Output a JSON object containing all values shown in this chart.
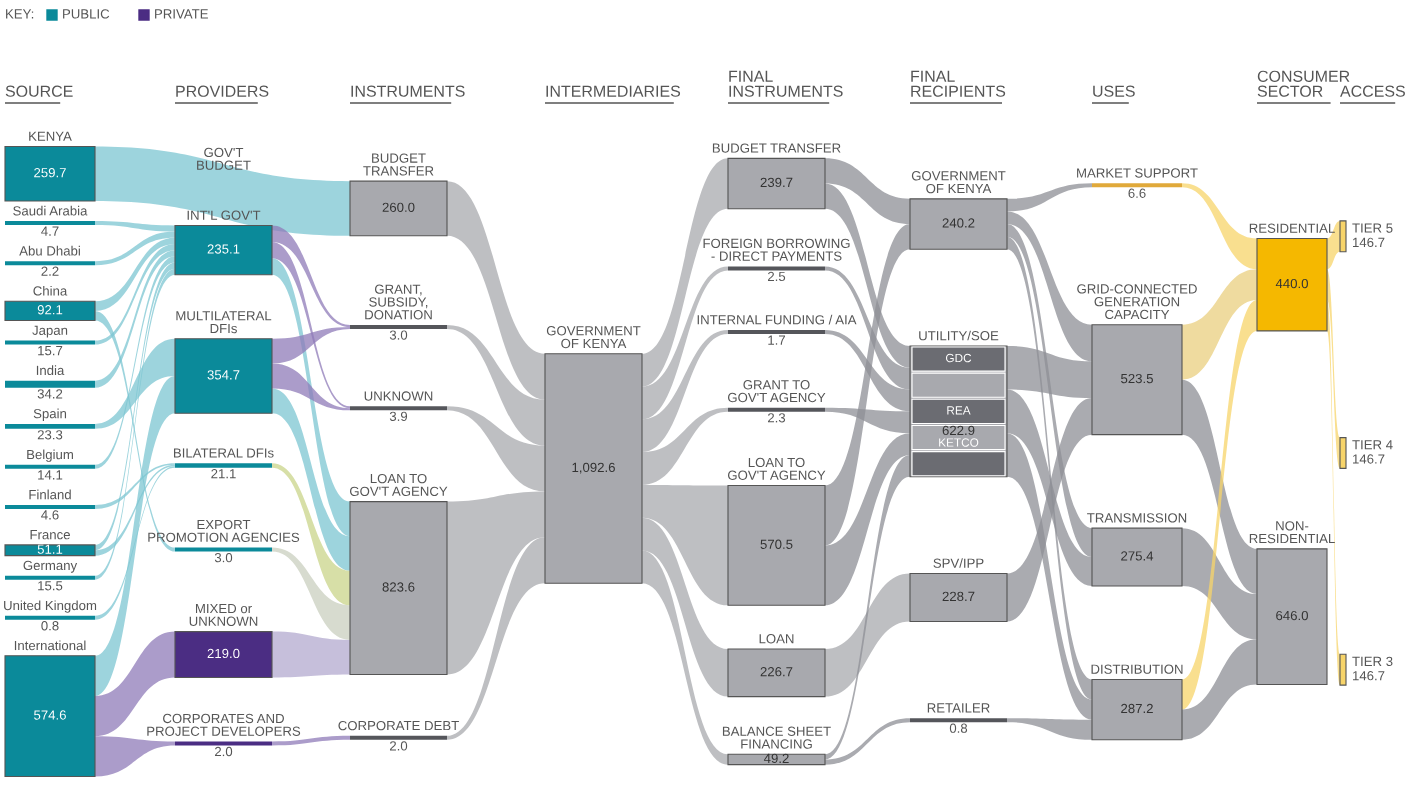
{
  "chart_data": [
    {
      "type": "other",
      "title": "SOURCE",
      "categories": [
        "KENYA",
        "Saudi Arabia",
        "Abu Dhabi",
        "China",
        "Japan",
        "India",
        "Spain",
        "Belgium",
        "Finland",
        "France",
        "Germany",
        "United Kingdom",
        "International"
      ],
      "values": [
        259.7,
        4.7,
        2.2,
        92.1,
        15.7,
        34.2,
        23.3,
        14.1,
        4.6,
        51.1,
        15.5,
        0.8,
        574.6
      ],
      "value_labels": [
        "259.7",
        "4.7",
        "2.2",
        "92.1",
        "15.7",
        "34.2",
        "23.3",
        "14.1",
        "4.6",
        "51.1",
        "15.5",
        "0.8",
        "574.6"
      ],
      "colors": [
        "#0b8a9a",
        "#0b8a9a",
        "#0b8a9a",
        "#0b8a9a",
        "#0b8a9a",
        "#0b8a9a",
        "#0b8a9a",
        "#0b8a9a",
        "#0b8a9a",
        "#0b8a9a",
        "#0b8a9a",
        "#0b8a9a",
        "#0b8a9a"
      ]
    },
    {
      "type": "other",
      "title": "PROVIDERS",
      "legend_title": "KEY:",
      "legend": "top left",
      "categories": [
        "GOV'T\nBUDGET",
        "INT'L GOV'T",
        "MULTILATERAL\nDFIs",
        "BILATERAL DFIs",
        "EXPORT\nPROMOTION AGENCIES",
        "MIXED or\nUNKNOWN",
        "CORPORATES AND\nPROJECT DEVELOPERS"
      ],
      "series": [
        {
          "name": "PUBLIC",
          "color": "#0b8a9a",
          "values": [
            null,
            235.1,
            354.7,
            21.1,
            3.0,
            null,
            null
          ],
          "value_labels": [
            null,
            "235.1",
            "354.7",
            "21.1",
            "3.0",
            null,
            null
          ]
        },
        {
          "name": "PRIVATE",
          "color": "#4b2d83",
          "values": [
            null,
            null,
            null,
            null,
            null,
            219.0,
            2.0
          ],
          "value_labels": [
            null,
            null,
            null,
            null,
            null,
            "219.0",
            "2.0"
          ]
        }
      ]
    },
    {
      "type": "other",
      "title": "INSTRUMENTS",
      "categories": [
        "BUDGET\nTRANSFER",
        "GRANT,\nSUBSIDY,\nDONATION",
        "UNKNOWN",
        "LOAN TO\nGOV'T AGENCY",
        "CORPORATE DEBT"
      ],
      "values": [
        260.0,
        3.0,
        3.9,
        823.6,
        2.0
      ],
      "value_labels": [
        "260.0",
        "3.0",
        "3.9",
        "823.6",
        "2.0"
      ],
      "colors": [
        "#a8a9ae",
        "#55565b",
        "#55565b",
        "#a8a9ae",
        "#55565b"
      ]
    },
    {
      "type": "other",
      "title": "INTERMEDIARIES",
      "categories": [
        "GOVERNMENT\nOF KENYA"
      ],
      "values": [
        1092.6
      ],
      "value_labels": [
        "1,092.6"
      ],
      "colors": [
        "#a8a9ae"
      ]
    },
    {
      "type": "other",
      "title": "FINAL\nINSTRUMENTS",
      "categories": [
        "BUDGET TRANSFER",
        "FOREIGN BORROWING\n- DIRECT PAYMENTS",
        "INTERNAL FUNDING / AIA",
        "GRANT TO\nGOV'T AGENCY",
        "LOAN TO\nGOV'T AGENCY",
        "LOAN",
        "BALANCE SHEET\nFINANCING"
      ],
      "values": [
        239.7,
        2.5,
        1.7,
        2.3,
        570.5,
        226.7,
        49.2
      ],
      "value_labels": [
        "239.7",
        "2.5",
        "1.7",
        "2.3",
        "570.5",
        "226.7",
        "49.2"
      ],
      "colors": [
        "#a8a9ae",
        "#55565b",
        "#55565b",
        "#55565b",
        "#a8a9ae",
        "#a8a9ae",
        "#a8a9ae"
      ]
    },
    {
      "type": "other",
      "title": "FINAL\nRECIPIENTS",
      "categories": [
        "GOVERNMENT\nOF KENYA",
        "UTILITY/SOE",
        "SPV/IPP",
        "RETAILER"
      ],
      "values": [
        240.2,
        622.9,
        228.7,
        0.8
      ],
      "value_labels": [
        "240.2",
        "622.9",
        "228.7",
        "0.8"
      ],
      "colors": [
        "#a8a9ae",
        "#a8a9ae",
        "#a8a9ae",
        "#55565b"
      ],
      "annotations": [
        "GDC",
        "REA",
        "KETCO"
      ]
    },
    {
      "type": "other",
      "title": "USES",
      "categories": [
        "MARKET SUPPORT",
        "GRID-CONNECTED\nGENERATION\nCAPACITY",
        "TRANSMISSION",
        "DISTRIBUTION"
      ],
      "values": [
        6.6,
        523.5,
        275.4,
        287.2
      ],
      "value_labels": [
        "6.6",
        "523.5",
        "275.4",
        "287.2"
      ],
      "colors": [
        "#e0a93a",
        "#a8a9ae",
        "#a8a9ae",
        "#a8a9ae"
      ]
    },
    {
      "type": "other",
      "title": "CONSUMER\nSECTOR",
      "categories": [
        "RESIDENTIAL",
        "NON-\nRESIDENTIAL"
      ],
      "values": [
        440.0,
        646.0
      ],
      "value_labels": [
        "440.0",
        "646.0"
      ],
      "colors": [
        "#f5b800",
        "#a8a9ae"
      ]
    },
    {
      "type": "other",
      "title": "ACCESS",
      "categories": [
        "TIER 5",
        "TIER 4",
        "TIER 3"
      ],
      "values": [
        146.7,
        146.7,
        146.7
      ],
      "value_labels": [
        "146.7",
        "146.7",
        "146.7"
      ],
      "colors": [
        "#f7d46a",
        "#f7d46a",
        "#f7d46a"
      ]
    }
  ]
}
